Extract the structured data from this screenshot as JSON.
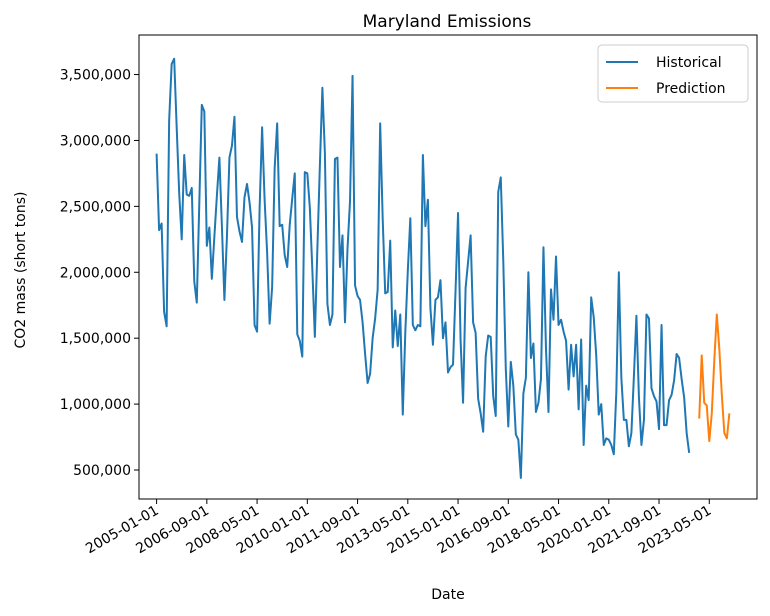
{
  "chart_data": {
    "type": "line",
    "title": "Maryland Emissions",
    "xlabel": "Date",
    "ylabel": "CO2 mass (short tons)",
    "xlim": [
      "2004-06-01",
      "2024-12-01"
    ],
    "ylim": [
      280000,
      3800000
    ],
    "xticks": [
      "2005-01-01",
      "2006-09-01",
      "2008-05-01",
      "2010-01-01",
      "2011-09-01",
      "2013-05-01",
      "2015-01-01",
      "2016-09-01",
      "2018-05-01",
      "2020-01-01",
      "2021-09-01",
      "2023-05-01"
    ],
    "yticks": [
      500000,
      1000000,
      1500000,
      2000000,
      2500000,
      3000000,
      3500000
    ],
    "ytick_labels": [
      "500,000",
      "1,000,000",
      "1,500,000",
      "2,000,000",
      "2,500,000",
      "3,000,000",
      "3,500,000"
    ],
    "legend": {
      "position": "upper right",
      "entries": [
        "Historical",
        "Prediction"
      ]
    },
    "grid": false,
    "series": [
      {
        "name": "Historical",
        "color": "#1f77b4",
        "start": "2005-01",
        "step": "month",
        "values": [
          2900000,
          2320000,
          2370000,
          1700000,
          1590000,
          3150000,
          3580000,
          3620000,
          3100000,
          2600000,
          2250000,
          2890000,
          2590000,
          2580000,
          2640000,
          1930000,
          1770000,
          2520000,
          3270000,
          3220000,
          2200000,
          2340000,
          1950000,
          2270000,
          2580000,
          2870000,
          2350000,
          1790000,
          2270000,
          2870000,
          2960000,
          3180000,
          2420000,
          2310000,
          2230000,
          2570000,
          2670000,
          2530000,
          2340000,
          1600000,
          1550000,
          2480000,
          3100000,
          2550000,
          2150000,
          1610000,
          1890000,
          2790000,
          3130000,
          2350000,
          2360000,
          2130000,
          2040000,
          2360000,
          2560000,
          2750000,
          1530000,
          1480000,
          1360000,
          2760000,
          2750000,
          2490000,
          2020000,
          1510000,
          2180000,
          2810000,
          3400000,
          2900000,
          1760000,
          1600000,
          1680000,
          2860000,
          2870000,
          2040000,
          2280000,
          1620000,
          2180000,
          2540000,
          3490000,
          1900000,
          1820000,
          1790000,
          1620000,
          1380000,
          1160000,
          1230000,
          1500000,
          1650000,
          1870000,
          3130000,
          2410000,
          1840000,
          1850000,
          2240000,
          1430000,
          1710000,
          1440000,
          1680000,
          920000,
          1540000,
          2010000,
          2410000,
          1600000,
          1560000,
          1600000,
          1590000,
          2890000,
          2350000,
          2550000,
          1730000,
          1450000,
          1790000,
          1810000,
          1940000,
          1500000,
          1620000,
          1240000,
          1280000,
          1300000,
          1860000,
          2450000,
          1490000,
          1010000,
          1880000,
          2080000,
          2280000,
          1620000,
          1540000,
          1040000,
          930000,
          790000,
          1360000,
          1520000,
          1510000,
          1060000,
          910000,
          2610000,
          2720000,
          2090000,
          1270000,
          830000,
          1320000,
          1140000,
          770000,
          730000,
          440000,
          1080000,
          1200000,
          2000000,
          1350000,
          1460000,
          940000,
          1010000,
          1190000,
          2190000,
          1420000,
          940000,
          1870000,
          1640000,
          2120000,
          1600000,
          1640000,
          1550000,
          1480000,
          1110000,
          1450000,
          1210000,
          1450000,
          960000,
          1490000,
          690000,
          1140000,
          1030000,
          1810000,
          1660000,
          1370000,
          920000,
          1000000,
          690000,
          740000,
          730000,
          690000,
          620000,
          1090000,
          2000000,
          1200000,
          880000,
          880000,
          680000,
          780000,
          1210000,
          1670000,
          1050000,
          690000,
          880000,
          1680000,
          1650000,
          1120000,
          1060000,
          1020000,
          810000,
          1600000,
          840000,
          840000,
          1030000,
          1070000,
          1180000,
          1380000,
          1350000,
          1190000,
          1050000,
          780000,
          630000
        ]
      },
      {
        "name": "Prediction",
        "color": "#ff7f0e",
        "start": "2023-01",
        "step": "month",
        "values": [
          890000,
          1370000,
          1010000,
          990000,
          720000,
          930000,
          1330000,
          1680000,
          1420000,
          1070000,
          780000,
          740000,
          930000
        ]
      }
    ]
  }
}
